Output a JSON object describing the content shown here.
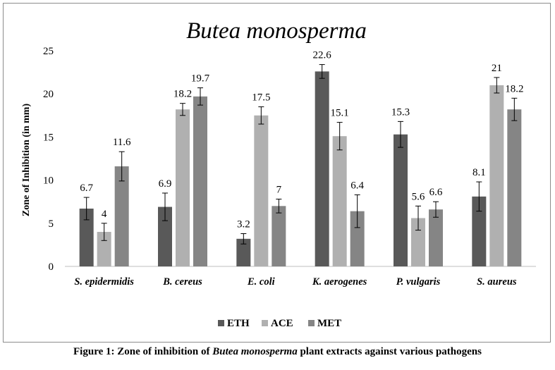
{
  "chart_data": {
    "type": "bar",
    "title": "Butea monosperma",
    "xlabel": "",
    "ylabel": "Zone of Inhibition (in mm)",
    "ylim": [
      0,
      25
    ],
    "yticks": [
      0,
      5,
      10,
      15,
      20,
      25
    ],
    "grid": false,
    "legend_position": "bottom",
    "categories": [
      "S. epidermidis",
      "B. cereus",
      "E. coli",
      "K. aerogenes",
      "P. vulgaris",
      "S. aureus"
    ],
    "series": [
      {
        "name": "ETH",
        "color": "#595959",
        "values": [
          6.7,
          6.9,
          3.2,
          22.6,
          15.3,
          8.1
        ],
        "errors": [
          1.3,
          1.6,
          0.6,
          0.8,
          1.5,
          1.7
        ],
        "labels": [
          "6.7",
          "6.9",
          "3.2",
          "22.6",
          "15.3",
          "8.1"
        ]
      },
      {
        "name": "ACE",
        "color": "#b0b0b0",
        "values": [
          4,
          18.2,
          17.5,
          15.1,
          5.6,
          21
        ],
        "errors": [
          1.0,
          0.7,
          1.0,
          1.6,
          1.4,
          0.9
        ],
        "labels": [
          "4",
          "18.2",
          "17.5",
          "15.1",
          "5.6",
          "21"
        ]
      },
      {
        "name": "MET",
        "color": "#858585",
        "values": [
          11.6,
          19.7,
          7,
          6.4,
          6.6,
          18.2
        ],
        "errors": [
          1.7,
          1.0,
          0.8,
          1.9,
          0.9,
          1.3
        ],
        "labels": [
          "11.6",
          "19.7",
          "7",
          "6.4",
          "6.6",
          "18.2"
        ]
      }
    ]
  },
  "caption": {
    "prefix": "Figure 1: Zone of inhibition of ",
    "species": "Butea monosperma",
    "suffix": " plant extracts against various pathogens"
  }
}
